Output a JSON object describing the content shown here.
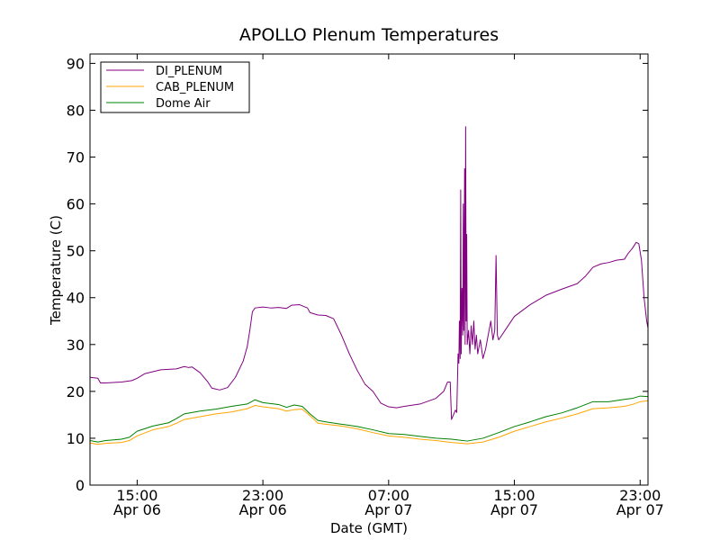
{
  "chart_data": {
    "type": "line",
    "title": "APOLLO Plenum Temperatures",
    "xlabel": "Date (GMT)",
    "ylabel": "Temperature (C)",
    "xlim": [
      "2014-04-06 12:00",
      "2014-04-07 23:30"
    ],
    "ylim": [
      0,
      92
    ],
    "grid": false,
    "legend_position": "top-left",
    "yticks": [
      0,
      10,
      20,
      30,
      40,
      50,
      60,
      70,
      80,
      90
    ],
    "xticks": [
      {
        "t": "2014-04-06 15:00",
        "time": "15:00",
        "date": "Apr 06"
      },
      {
        "t": "2014-04-06 23:00",
        "time": "23:00",
        "date": "Apr 06"
      },
      {
        "t": "2014-04-07 07:00",
        "time": "07:00",
        "date": "Apr 07"
      },
      {
        "t": "2014-04-07 15:00",
        "time": "15:00",
        "date": "Apr 07"
      },
      {
        "t": "2014-04-07 23:00",
        "time": "23:00",
        "date": "Apr 07"
      }
    ],
    "series": [
      {
        "name": "DI_PLENUM",
        "color": "#800080",
        "points": [
          [
            "2014-04-06 12:00",
            23
          ],
          [
            "2014-04-06 12:30",
            22.8
          ],
          [
            "2014-04-06 12:40",
            21.8
          ],
          [
            "2014-04-06 13:00",
            21.8
          ],
          [
            "2014-04-06 14:00",
            22
          ],
          [
            "2014-04-06 14:40",
            22.3
          ],
          [
            "2014-04-06 15:00",
            22.8
          ],
          [
            "2014-04-06 15:30",
            23.8
          ],
          [
            "2014-04-06 16:30",
            24.6
          ],
          [
            "2014-04-06 17:30",
            24.8
          ],
          [
            "2014-04-06 18:00",
            25.3
          ],
          [
            "2014-04-06 18:15",
            25.1
          ],
          [
            "2014-04-06 18:30",
            25.2
          ],
          [
            "2014-04-06 19:00",
            24
          ],
          [
            "2014-04-06 19:30",
            22
          ],
          [
            "2014-04-06 19:45",
            20.7
          ],
          [
            "2014-04-06 20:15",
            20.3
          ],
          [
            "2014-04-06 20:45",
            20.8
          ],
          [
            "2014-04-06 21:15",
            23
          ],
          [
            "2014-04-06 21:45",
            26.5
          ],
          [
            "2014-04-06 22:00",
            29.5
          ],
          [
            "2014-04-06 22:10",
            33
          ],
          [
            "2014-04-06 22:20",
            37
          ],
          [
            "2014-04-06 22:30",
            37.8
          ],
          [
            "2014-04-06 23:00",
            38
          ],
          [
            "2014-04-06 23:30",
            37.8
          ],
          [
            "2014-04-07 00:00",
            37.9
          ],
          [
            "2014-04-07 00:30",
            37.7
          ],
          [
            "2014-04-07 00:50",
            38.4
          ],
          [
            "2014-04-07 01:20",
            38.5
          ],
          [
            "2014-04-07 01:50",
            37.8
          ],
          [
            "2014-04-07 02:00",
            36.8
          ],
          [
            "2014-04-07 02:30",
            36.3
          ],
          [
            "2014-04-07 03:00",
            36.2
          ],
          [
            "2014-04-07 03:30",
            35.5
          ],
          [
            "2014-04-07 04:00",
            32
          ],
          [
            "2014-04-07 04:30",
            28
          ],
          [
            "2014-04-07 05:00",
            24.5
          ],
          [
            "2014-04-07 05:30",
            21.5
          ],
          [
            "2014-04-07 06:00",
            20
          ],
          [
            "2014-04-07 06:30",
            17.5
          ],
          [
            "2014-04-07 07:00",
            16.7
          ],
          [
            "2014-04-07 07:30",
            16.5
          ],
          [
            "2014-04-07 08:00",
            16.8
          ],
          [
            "2014-04-07 09:00",
            17.3
          ],
          [
            "2014-04-07 10:00",
            18.5
          ],
          [
            "2014-04-07 10:30",
            20
          ],
          [
            "2014-04-07 10:45",
            22
          ],
          [
            "2014-04-07 10:55",
            22
          ],
          [
            "2014-04-07 11:00",
            14
          ],
          [
            "2014-04-07 11:15",
            16
          ],
          [
            "2014-04-07 11:20",
            15.5
          ],
          [
            "2014-04-07 11:25",
            28
          ],
          [
            "2014-04-07 11:28",
            26
          ],
          [
            "2014-04-07 11:30",
            35
          ],
          [
            "2014-04-07 11:33",
            27
          ],
          [
            "2014-04-07 11:35",
            63
          ],
          [
            "2014-04-07 11:37",
            28
          ],
          [
            "2014-04-07 11:40",
            42
          ],
          [
            "2014-04-07 11:43",
            32
          ],
          [
            "2014-04-07 11:45",
            60
          ],
          [
            "2014-04-07 11:47",
            33
          ],
          [
            "2014-04-07 11:50",
            67.5
          ],
          [
            "2014-04-07 11:52",
            30
          ],
          [
            "2014-04-07 11:54",
            76.5
          ],
          [
            "2014-04-07 11:56",
            35
          ],
          [
            "2014-04-07 11:58",
            53.5
          ],
          [
            "2014-04-07 12:00",
            30
          ],
          [
            "2014-04-07 12:05",
            33
          ],
          [
            "2014-04-07 12:10",
            28
          ],
          [
            "2014-04-07 12:15",
            34
          ],
          [
            "2014-04-07 12:20",
            30
          ],
          [
            "2014-04-07 12:25",
            35
          ],
          [
            "2014-04-07 12:30",
            29
          ],
          [
            "2014-04-07 12:35",
            32
          ],
          [
            "2014-04-07 12:40",
            28
          ],
          [
            "2014-04-07 12:50",
            31
          ],
          [
            "2014-04-07 13:00",
            27
          ],
          [
            "2014-04-07 13:10",
            29
          ],
          [
            "2014-04-07 13:20",
            32
          ],
          [
            "2014-04-07 13:30",
            35
          ],
          [
            "2014-04-07 13:38",
            31
          ],
          [
            "2014-04-07 13:45",
            33
          ],
          [
            "2014-04-07 13:50",
            49
          ],
          [
            "2014-04-07 13:55",
            32
          ],
          [
            "2014-04-07 14:00",
            31
          ],
          [
            "2014-04-07 14:30",
            33.5
          ],
          [
            "2014-04-07 15:00",
            36
          ],
          [
            "2014-04-07 16:00",
            38.5
          ],
          [
            "2014-04-07 17:00",
            40.5
          ],
          [
            "2014-04-07 18:00",
            41.8
          ],
          [
            "2014-04-07 19:00",
            43
          ],
          [
            "2014-04-07 19:30",
            44.5
          ],
          [
            "2014-04-07 20:00",
            46.5
          ],
          [
            "2014-04-07 20:30",
            47.2
          ],
          [
            "2014-04-07 21:00",
            47.5
          ],
          [
            "2014-04-07 21:30",
            48
          ],
          [
            "2014-04-07 22:00",
            48.2
          ],
          [
            "2014-04-07 22:15",
            49.5
          ],
          [
            "2014-04-07 22:30",
            50.5
          ],
          [
            "2014-04-07 22:45",
            51.8
          ],
          [
            "2014-04-07 22:55",
            51.5
          ],
          [
            "2014-04-07 23:05",
            48
          ],
          [
            "2014-04-07 23:15",
            40
          ],
          [
            "2014-04-07 23:25",
            35
          ],
          [
            "2014-04-07 23:30",
            33.5
          ]
        ]
      },
      {
        "name": "CAB_PLENUM",
        "color": "#ffa500",
        "points": [
          [
            "2014-04-06 12:00",
            9
          ],
          [
            "2014-04-06 12:30",
            8.7
          ],
          [
            "2014-04-06 13:00",
            8.9
          ],
          [
            "2014-04-06 14:00",
            9.1
          ],
          [
            "2014-04-06 14:30",
            9.5
          ],
          [
            "2014-04-06 15:00",
            10.5
          ],
          [
            "2014-04-06 16:00",
            11.8
          ],
          [
            "2014-04-06 17:00",
            12.5
          ],
          [
            "2014-04-06 17:30",
            13.2
          ],
          [
            "2014-04-06 18:00",
            14
          ],
          [
            "2014-04-06 19:00",
            14.6
          ],
          [
            "2014-04-06 20:00",
            15.2
          ],
          [
            "2014-04-06 21:00",
            15.6
          ],
          [
            "2014-04-06 22:00",
            16.3
          ],
          [
            "2014-04-06 22:30",
            17
          ],
          [
            "2014-04-06 23:00",
            16.7
          ],
          [
            "2014-04-07 00:00",
            16.3
          ],
          [
            "2014-04-07 00:30",
            15.8
          ],
          [
            "2014-04-07 01:00",
            16.1
          ],
          [
            "2014-04-07 01:30",
            16.2
          ],
          [
            "2014-04-07 02:00",
            14.8
          ],
          [
            "2014-04-07 02:30",
            13.2
          ],
          [
            "2014-04-07 03:00",
            13
          ],
          [
            "2014-04-07 04:00",
            12.6
          ],
          [
            "2014-04-07 05:00",
            12
          ],
          [
            "2014-04-07 06:00",
            11.2
          ],
          [
            "2014-04-07 07:00",
            10.5
          ],
          [
            "2014-04-07 08:00",
            10.2
          ],
          [
            "2014-04-07 09:00",
            9.8
          ],
          [
            "2014-04-07 10:00",
            9.5
          ],
          [
            "2014-04-07 11:00",
            9.1
          ],
          [
            "2014-04-07 12:00",
            8.8
          ],
          [
            "2014-04-07 13:00",
            9.2
          ],
          [
            "2014-04-07 14:00",
            10.2
          ],
          [
            "2014-04-07 15:00",
            11.5
          ],
          [
            "2014-04-07 16:00",
            12.5
          ],
          [
            "2014-04-07 17:00",
            13.5
          ],
          [
            "2014-04-07 18:00",
            14.3
          ],
          [
            "2014-04-07 19:00",
            15.2
          ],
          [
            "2014-04-07 20:00",
            16.3
          ],
          [
            "2014-04-07 21:00",
            16.5
          ],
          [
            "2014-04-07 22:00",
            16.8
          ],
          [
            "2014-04-07 22:30",
            17.2
          ],
          [
            "2014-04-07 23:00",
            17.8
          ],
          [
            "2014-04-07 23:30",
            18
          ]
        ]
      },
      {
        "name": "Dome Air",
        "color": "#008000",
        "points": [
          [
            "2014-04-06 12:00",
            9.5
          ],
          [
            "2014-04-06 12:30",
            9.2
          ],
          [
            "2014-04-06 13:00",
            9.5
          ],
          [
            "2014-04-06 14:00",
            9.8
          ],
          [
            "2014-04-06 14:30",
            10.2
          ],
          [
            "2014-04-06 15:00",
            11.5
          ],
          [
            "2014-04-06 16:00",
            12.6
          ],
          [
            "2014-04-06 17:00",
            13.3
          ],
          [
            "2014-04-06 17:30",
            14.2
          ],
          [
            "2014-04-06 18:00",
            15.2
          ],
          [
            "2014-04-06 19:00",
            15.8
          ],
          [
            "2014-04-06 20:00",
            16.2
          ],
          [
            "2014-04-06 21:00",
            16.8
          ],
          [
            "2014-04-06 22:00",
            17.3
          ],
          [
            "2014-04-06 22:30",
            18.2
          ],
          [
            "2014-04-06 23:00",
            17.6
          ],
          [
            "2014-04-07 00:00",
            17.2
          ],
          [
            "2014-04-07 00:30",
            16.6
          ],
          [
            "2014-04-07 01:00",
            17.1
          ],
          [
            "2014-04-07 01:30",
            16.8
          ],
          [
            "2014-04-07 02:00",
            15.2
          ],
          [
            "2014-04-07 02:30",
            13.8
          ],
          [
            "2014-04-07 03:00",
            13.5
          ],
          [
            "2014-04-07 04:00",
            13
          ],
          [
            "2014-04-07 05:00",
            12.5
          ],
          [
            "2014-04-07 06:00",
            11.8
          ],
          [
            "2014-04-07 07:00",
            11
          ],
          [
            "2014-04-07 08:00",
            10.8
          ],
          [
            "2014-04-07 09:00",
            10.4
          ],
          [
            "2014-04-07 10:00",
            10
          ],
          [
            "2014-04-07 11:00",
            9.8
          ],
          [
            "2014-04-07 12:00",
            9.4
          ],
          [
            "2014-04-07 13:00",
            10
          ],
          [
            "2014-04-07 14:00",
            11.2
          ],
          [
            "2014-04-07 15:00",
            12.5
          ],
          [
            "2014-04-07 16:00",
            13.5
          ],
          [
            "2014-04-07 17:00",
            14.6
          ],
          [
            "2014-04-07 18:00",
            15.4
          ],
          [
            "2014-04-07 19:00",
            16.5
          ],
          [
            "2014-04-07 20:00",
            17.8
          ],
          [
            "2014-04-07 21:00",
            17.8
          ],
          [
            "2014-04-07 22:00",
            18.3
          ],
          [
            "2014-04-07 22:30",
            18.5
          ],
          [
            "2014-04-07 23:00",
            19
          ],
          [
            "2014-04-07 23:30",
            18.9
          ]
        ]
      }
    ]
  }
}
